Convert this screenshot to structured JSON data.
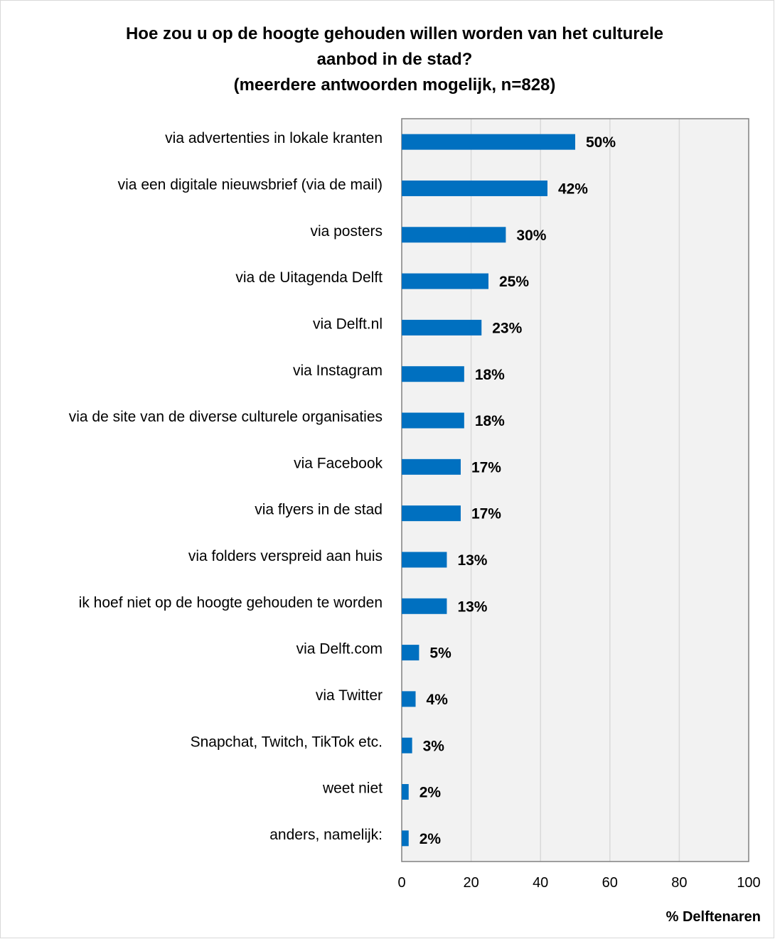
{
  "chart_data": {
    "type": "bar",
    "orientation": "horizontal",
    "title_lines": [
      "Hoe zou u op de hoogte gehouden willen worden van het culturele",
      "aanbod in de stad?",
      "(meerdere antwoorden mogelijk, n=828)"
    ],
    "categories": [
      "via advertenties in lokale kranten",
      "via een digitale nieuwsbrief (via de mail)",
      "via posters",
      "via de Uitagenda Delft",
      "via Delft.nl",
      "via Instagram",
      "via de site van de diverse culturele organisaties",
      "via Facebook",
      "via flyers in de stad",
      "via folders verspreid aan huis",
      "ik hoef niet op de hoogte gehouden te worden",
      "via Delft.com",
      "via Twitter",
      "Snapchat, Twitch, TikTok etc.",
      "weet niet",
      "anders, namelijk:"
    ],
    "values": [
      50,
      42,
      30,
      25,
      23,
      18,
      18,
      17,
      17,
      13,
      13,
      5,
      4,
      3,
      2,
      2
    ],
    "value_labels": [
      "50%",
      "42%",
      "30%",
      "25%",
      "23%",
      "18%",
      "18%",
      "17%",
      "17%",
      "13%",
      "13%",
      "5%",
      "4%",
      "3%",
      "2%",
      "2%"
    ],
    "xlabel": "% Delftenaren",
    "xlim": [
      0,
      100
    ],
    "xticks": [
      "0",
      "20",
      "40",
      "60",
      "80",
      "100"
    ],
    "grid": true,
    "legend": "none",
    "colors": {
      "bar": "#0070C0",
      "plot_background": "#F2F2F2",
      "gridline": "#D9D9D9",
      "border": "#808080"
    }
  }
}
